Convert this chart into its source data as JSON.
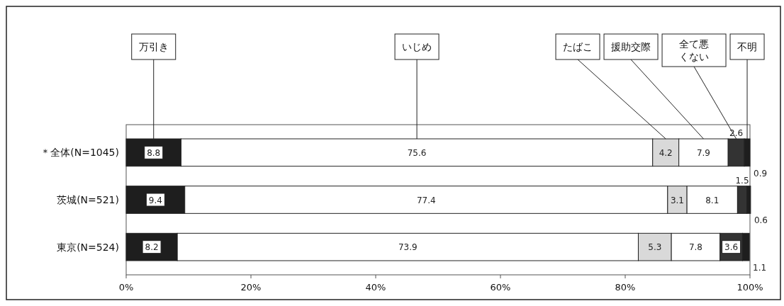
{
  "chart_data": {
    "type": "bar",
    "orientation": "horizontal",
    "stacked": true,
    "categories": [
      "＊全体(N=1045)",
      "茨城(N=521)",
      "東京(N=524)"
    ],
    "series": [
      {
        "name": "万引き",
        "color": "#1e1e1e",
        "values": [
          8.8,
          9.4,
          8.2
        ]
      },
      {
        "name": "いじめ",
        "color": "#ffffff",
        "values": [
          75.6,
          77.4,
          73.9
        ]
      },
      {
        "name": "たばこ",
        "color": "#d9d9d9",
        "values": [
          4.2,
          3.1,
          5.3
        ]
      },
      {
        "name": "援助交際",
        "color": "#ffffff",
        "values": [
          7.9,
          8.1,
          7.8
        ]
      },
      {
        "name": "全て悪くない",
        "color": "#333333",
        "values": [
          2.6,
          1.5,
          3.6
        ]
      },
      {
        "name": "不明",
        "color": "#1e1e1e",
        "values": [
          0.9,
          0.6,
          1.1
        ]
      }
    ],
    "xlim": [
      0,
      100
    ],
    "xticks": [
      {
        "value": 0,
        "label": "0%"
      },
      {
        "value": 20,
        "label": "20%"
      },
      {
        "value": 40,
        "label": "40%"
      },
      {
        "value": 60,
        "label": "60%"
      },
      {
        "value": 80,
        "label": "80%"
      },
      {
        "value": 100,
        "label": "100%"
      }
    ],
    "data_labels": true,
    "legend": "top",
    "grid": false
  }
}
